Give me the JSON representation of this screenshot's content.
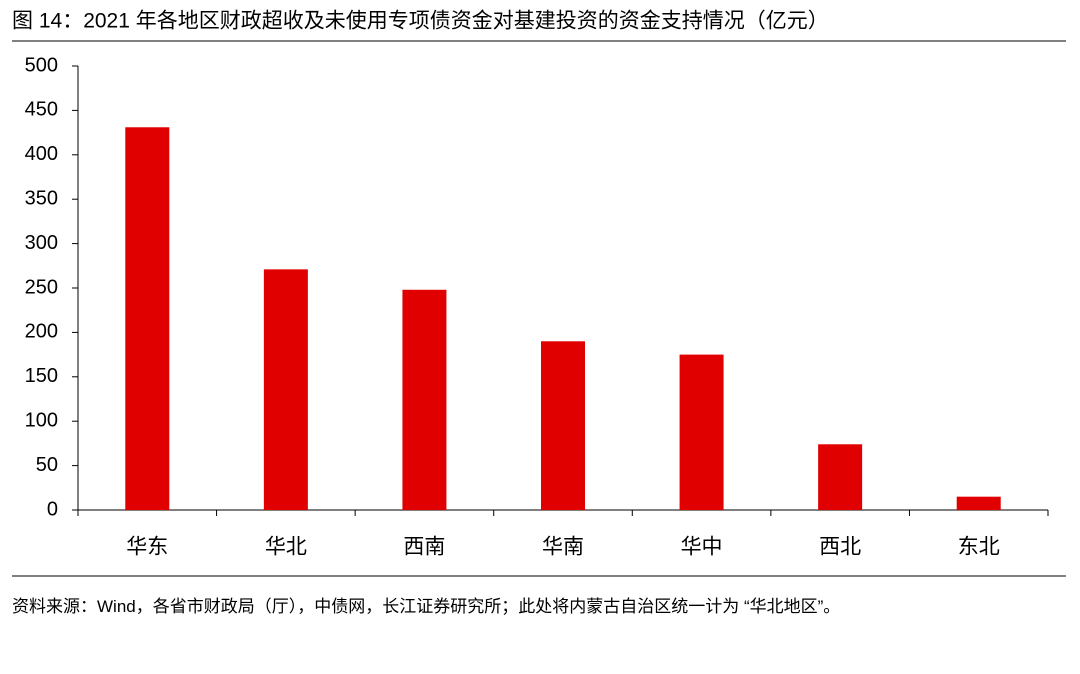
{
  "chart_data": {
    "type": "bar",
    "title": "图 14：2021 年各地区财政超收及未使用专项债资金对基建投资的资金支持情况（亿元）",
    "categories": [
      "华东",
      "华北",
      "西南",
      "华南",
      "华中",
      "西北",
      "东北"
    ],
    "values": [
      431,
      271,
      248,
      190,
      175,
      74,
      15
    ],
    "color": "#e00000",
    "ylim": [
      0,
      500
    ],
    "yticks": [
      0,
      50,
      100,
      150,
      200,
      250,
      300,
      350,
      400,
      450,
      500
    ],
    "source": "资料来源：Wind，各省市财政局（厅），中债网，长江证券研究所；此处将内蒙古自治区统一计为 “华北地区”。"
  }
}
